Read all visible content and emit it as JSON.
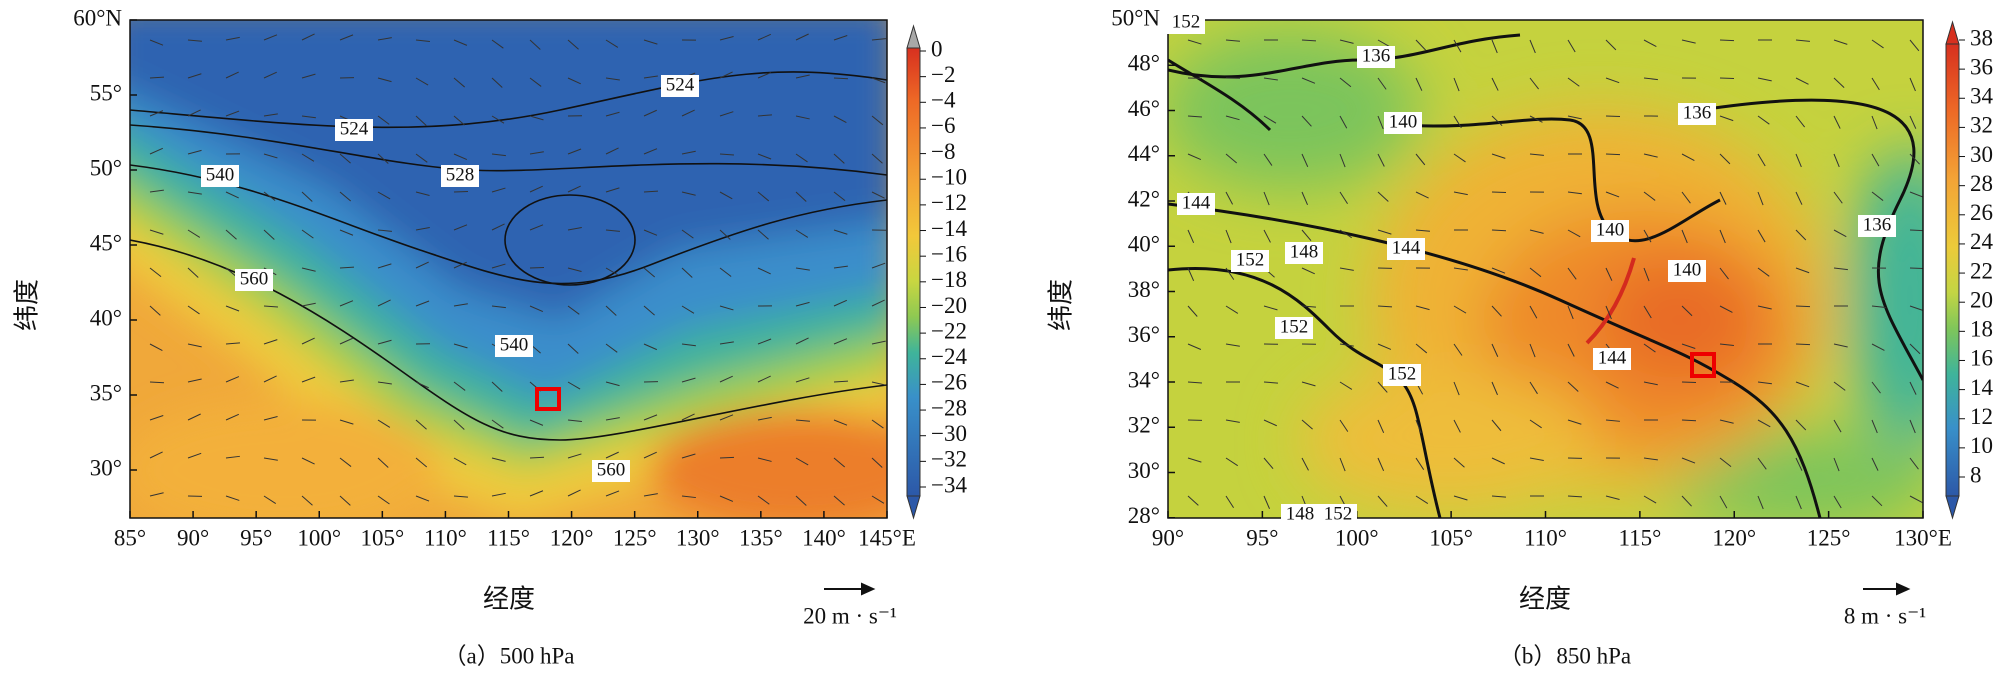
{
  "panels": [
    {
      "caption": "（a）500 hPa",
      "x_label": "经度",
      "y_label": "纬度",
      "x_ticks": [
        "85°",
        "90°",
        "95°",
        "100°",
        "105°",
        "110°",
        "115°",
        "120°",
        "125°",
        "130°",
        "135°",
        "140°",
        "145°E"
      ],
      "y_ticks": [
        "60°N",
        "55°",
        "50°",
        "45°",
        "40°",
        "35°",
        "30°"
      ],
      "colorbar_ticks": [
        "0",
        "−2",
        "−4",
        "−6",
        "−8",
        "−10",
        "−12",
        "−14",
        "−16",
        "−18",
        "−20",
        "−22",
        "−24",
        "−26",
        "−28",
        "−30",
        "−32",
        "−34"
      ],
      "contour_labels": [
        "524",
        "524",
        "528",
        "540",
        "560",
        "540",
        "560"
      ],
      "reference_vector": "20 m · s⁻¹"
    },
    {
      "caption": "（b）850 hPa",
      "x_label": "经度",
      "y_label": "纬度",
      "x_ticks": [
        "90°",
        "95°",
        "100°",
        "105°",
        "110°",
        "115°",
        "120°",
        "125°",
        "130°E"
      ],
      "y_ticks": [
        "50°N",
        "48°",
        "46°",
        "44°",
        "42°",
        "40°",
        "38°",
        "36°",
        "34°",
        "32°",
        "30°",
        "28°"
      ],
      "colorbar_ticks": [
        "38",
        "36",
        "34",
        "32",
        "30",
        "28",
        "26",
        "24",
        "22",
        "20",
        "18",
        "16",
        "14",
        "12",
        "10",
        "8"
      ],
      "contour_labels": [
        "152",
        "136",
        "140",
        "136",
        "144",
        "152",
        "148",
        "144",
        "140",
        "140",
        "136",
        "152",
        "152",
        "144",
        "148",
        "152"
      ],
      "reference_vector": "8 m · s⁻¹"
    }
  ]
}
